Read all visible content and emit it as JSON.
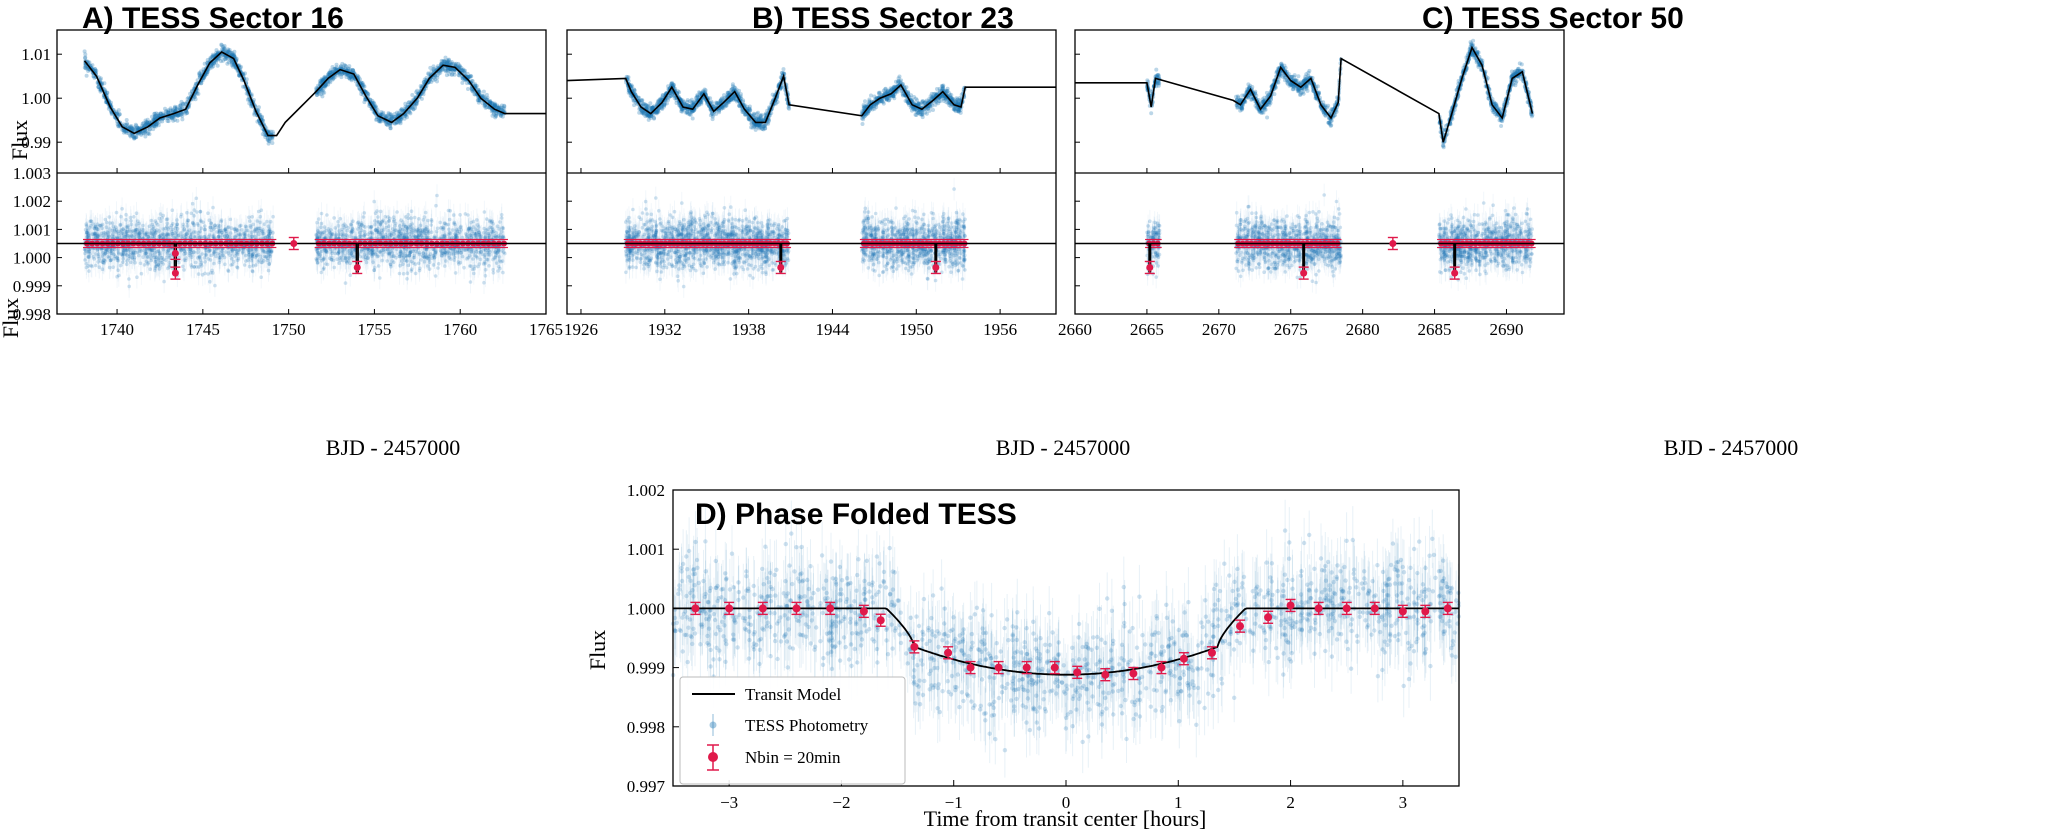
{
  "chart_data": [
    {
      "type": "scatter",
      "id": "A",
      "title": "A) TESS Sector 16",
      "xlabel": "BJD - 2457000",
      "xlim": [
        1736.5,
        1765
      ],
      "xticks": [
        "1740",
        "1745",
        "1750",
        "1755",
        "1760",
        "1765"
      ],
      "top": {
        "ylabel": "Flux",
        "ylim": [
          0.983,
          1.0155
        ],
        "yticks": [
          "0.99",
          "1.00",
          "1.01"
        ],
        "segments": [
          [
            1738.1,
            1749.1
          ],
          [
            1751.6,
            1762.6
          ]
        ],
        "trend": [
          [
            1738.1,
            1.0085
          ],
          [
            1738.8,
            1.005
          ],
          [
            1739.6,
            0.998
          ],
          [
            1740.3,
            0.9935
          ],
          [
            1741.0,
            0.992
          ],
          [
            1741.8,
            0.9935
          ],
          [
            1742.5,
            0.9955
          ],
          [
            1743.3,
            0.9965
          ],
          [
            1744.0,
            0.9975
          ],
          [
            1744.7,
            1.003
          ],
          [
            1745.4,
            1.008
          ],
          [
            1746.1,
            1.0105
          ],
          [
            1746.8,
            1.009
          ],
          [
            1747.4,
            1.004
          ],
          [
            1748.1,
            0.997
          ],
          [
            1748.8,
            0.9915
          ],
          [
            1749.3,
            0.9915
          ],
          [
            1749.8,
            0.9945
          ],
          [
            1751.6,
            1.0015
          ],
          [
            1752.3,
            1.0045
          ],
          [
            1753.0,
            1.0065
          ],
          [
            1753.8,
            1.0055
          ],
          [
            1754.5,
            1.0005
          ],
          [
            1755.2,
            0.996
          ],
          [
            1756.0,
            0.9945
          ],
          [
            1756.7,
            0.9965
          ],
          [
            1757.5,
            1.0
          ],
          [
            1758.2,
            1.0045
          ],
          [
            1759.0,
            1.0075
          ],
          [
            1759.7,
            1.007
          ],
          [
            1760.5,
            1.004
          ],
          [
            1761.2,
            1.0
          ],
          [
            1762.0,
            0.9975
          ],
          [
            1762.6,
            0.9965
          ],
          [
            1765,
            0.9965
          ]
        ]
      },
      "bottom": {
        "ylabel": "Flux",
        "ylim": [
          0.998,
          1.003
        ],
        "yticks": [
          "0.998",
          "0.999",
          "1.000",
          "1.001",
          "1.002",
          "1.003"
        ],
        "baseline": 1.0005,
        "transit_depth": 0.9995,
        "transit_times": [
          1743.4,
          1754.0
        ],
        "binned": [
          [
            1743.4,
            0.99945
          ],
          [
            1743.4,
            1.00015
          ],
          [
            1754.0,
            0.99965
          ],
          [
            1750.3,
            1.0005
          ]
        ]
      }
    },
    {
      "type": "scatter",
      "id": "B",
      "title": "B) TESS Sector 23",
      "xlabel": "BJD - 2457000",
      "xlim": [
        1925,
        1960
      ],
      "xticks": [
        "1926",
        "1932",
        "1938",
        "1944",
        "1950",
        "1956"
      ],
      "top": {
        "ylabel": "",
        "ylim": [
          0.983,
          1.0155
        ],
        "yticks": [],
        "segments": [
          [
            1929.2,
            1940.9
          ],
          [
            1946.1,
            1953.5
          ]
        ],
        "trend": [
          [
            1925,
            1.004
          ],
          [
            1929.2,
            1.0045
          ],
          [
            1929.6,
            1.0015
          ],
          [
            1930.3,
            0.998
          ],
          [
            1931.0,
            0.9965
          ],
          [
            1931.8,
            0.999
          ],
          [
            1932.5,
            1.0025
          ],
          [
            1933.3,
            0.998
          ],
          [
            1934.0,
            0.9975
          ],
          [
            1934.8,
            1.001
          ],
          [
            1935.5,
            0.997
          ],
          [
            1936.2,
            0.999
          ],
          [
            1937.0,
            1.0015
          ],
          [
            1937.7,
            0.9975
          ],
          [
            1938.5,
            0.9945
          ],
          [
            1939.2,
            0.9945
          ],
          [
            1939.9,
            1.0
          ],
          [
            1940.5,
            1.005
          ],
          [
            1940.9,
            0.9985
          ],
          [
            1946.1,
            0.996
          ],
          [
            1946.7,
            0.9985
          ],
          [
            1947.4,
            1.0
          ],
          [
            1948.2,
            1.001
          ],
          [
            1948.9,
            1.003
          ],
          [
            1949.7,
            0.9985
          ],
          [
            1950.4,
            0.9975
          ],
          [
            1951.2,
            0.9995
          ],
          [
            1951.9,
            1.0015
          ],
          [
            1952.7,
            0.9985
          ],
          [
            1953.2,
            0.998
          ],
          [
            1953.5,
            1.0025
          ],
          [
            1960,
            1.0025
          ]
        ]
      },
      "bottom": {
        "ylabel": "",
        "ylim": [
          0.998,
          1.003
        ],
        "yticks": [],
        "baseline": 1.0005,
        "transit_depth": 0.9995,
        "transit_times": [
          1940.3,
          1951.4
        ],
        "binned": [
          [
            1940.3,
            0.99965
          ],
          [
            1951.4,
            0.99965
          ]
        ]
      }
    },
    {
      "type": "scatter",
      "id": "C",
      "title": "C) TESS Sector 50",
      "xlabel": "BJD - 2457000",
      "xlim": [
        2660,
        2694
      ],
      "xticks": [
        "2660",
        "2665",
        "2670",
        "2675",
        "2680",
        "2685",
        "2690"
      ],
      "top": {
        "ylabel": "",
        "ylim": [
          0.983,
          1.0155
        ],
        "yticks": [],
        "segments": [
          [
            2665.0,
            2665.9
          ],
          [
            2671.2,
            2678.5
          ],
          [
            2685.3,
            2691.8
          ]
        ],
        "trend": [
          [
            2660,
            1.0035
          ],
          [
            2665.0,
            1.0035
          ],
          [
            2665.3,
            0.998
          ],
          [
            2665.6,
            1.0045
          ],
          [
            2671.0,
            0.9995
          ],
          [
            2671.5,
            0.9985
          ],
          [
            2672.2,
            1.002
          ],
          [
            2672.9,
            0.9975
          ],
          [
            2673.6,
            1.0005
          ],
          [
            2674.3,
            1.007
          ],
          [
            2675.0,
            1.004
          ],
          [
            2675.7,
            1.0025
          ],
          [
            2676.4,
            1.0045
          ],
          [
            2677.1,
            0.9985
          ],
          [
            2677.8,
            0.9955
          ],
          [
            2678.3,
            0.999
          ],
          [
            2678.5,
            1.009
          ],
          [
            2685.3,
            0.9965
          ],
          [
            2685.6,
            0.99
          ],
          [
            2686.2,
            0.9965
          ],
          [
            2686.9,
            1.0045
          ],
          [
            2687.6,
            1.0115
          ],
          [
            2688.3,
            1.0075
          ],
          [
            2689.0,
            0.9985
          ],
          [
            2689.7,
            0.9955
          ],
          [
            2690.4,
            1.0045
          ],
          [
            2691.1,
            1.006
          ],
          [
            2691.8,
            0.9965
          ]
        ]
      },
      "bottom": {
        "ylabel": "",
        "ylim": [
          0.998,
          1.003
        ],
        "yticks": [],
        "baseline": 1.0005,
        "transit_depth": 0.9995,
        "transit_times": [
          2665.2,
          2675.9,
          2686.4
        ],
        "binned": [
          [
            2665.2,
            0.99965
          ],
          [
            2675.9,
            0.99945
          ],
          [
            2686.4,
            0.99945
          ],
          [
            2682.1,
            1.0005
          ]
        ]
      }
    },
    {
      "type": "scatter",
      "id": "D",
      "title": "D) Phase Folded TESS",
      "xlabel": "Time from transit center [hours]",
      "ylabel": "Flux",
      "xlim": [
        -3.5,
        3.5
      ],
      "ylim": [
        0.997,
        1.002
      ],
      "xticks": [
        "−3",
        "−2",
        "−1",
        "0",
        "1",
        "2",
        "3"
      ],
      "yticks": [
        "0.997",
        "0.998",
        "0.999",
        "1.000",
        "1.001",
        "1.002"
      ],
      "transit_model": {
        "t1": -1.6,
        "t2": -1.35,
        "t3": 1.35,
        "t4": 1.6,
        "depth_center": 0.99888,
        "depth_edge": 0.99935
      },
      "binned": [
        [
          -3.3,
          1.0
        ],
        [
          -3.0,
          1.0
        ],
        [
          -2.7,
          1.0
        ],
        [
          -2.4,
          1.0
        ],
        [
          -2.1,
          1.0
        ],
        [
          -1.8,
          0.99995
        ],
        [
          -1.65,
          0.9998
        ],
        [
          -1.35,
          0.99935
        ],
        [
          -1.05,
          0.99925
        ],
        [
          -0.85,
          0.999
        ],
        [
          -0.6,
          0.999
        ],
        [
          -0.35,
          0.999
        ],
        [
          -0.1,
          0.999
        ],
        [
          0.1,
          0.99892
        ],
        [
          0.35,
          0.99888
        ],
        [
          0.6,
          0.9989
        ],
        [
          0.85,
          0.999
        ],
        [
          1.05,
          0.99915
        ],
        [
          1.3,
          0.99925
        ],
        [
          1.55,
          0.9997
        ],
        [
          1.8,
          0.99985
        ],
        [
          2.0,
          1.00005
        ],
        [
          2.25,
          1.0
        ],
        [
          2.5,
          1.0
        ],
        [
          2.75,
          1.0
        ],
        [
          3.0,
          0.99995
        ],
        [
          3.2,
          0.99995
        ],
        [
          3.4,
          1.0
        ]
      ],
      "legend": [
        "Transit Model",
        "TESS Photometry",
        "Nbin = 20min"
      ]
    }
  ],
  "colors": {
    "points": "#1f77b4",
    "binned": "#e0194a",
    "model": "#000000"
  }
}
